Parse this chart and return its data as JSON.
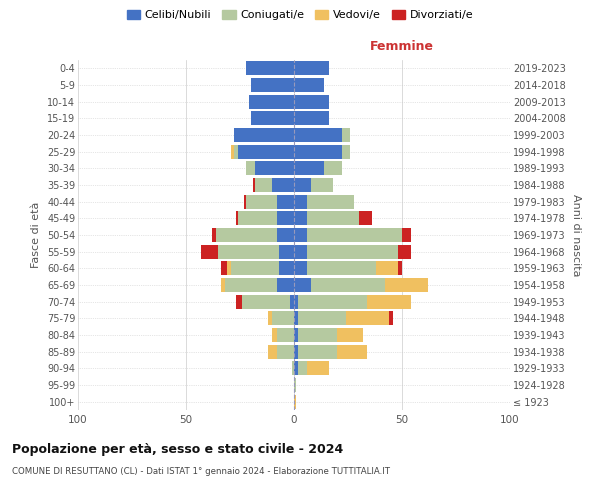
{
  "age_groups": [
    "100+",
    "95-99",
    "90-94",
    "85-89",
    "80-84",
    "75-79",
    "70-74",
    "65-69",
    "60-64",
    "55-59",
    "50-54",
    "45-49",
    "40-44",
    "35-39",
    "30-34",
    "25-29",
    "20-24",
    "15-19",
    "10-14",
    "5-9",
    "0-4"
  ],
  "birth_years": [
    "≤ 1923",
    "1924-1928",
    "1929-1933",
    "1934-1938",
    "1939-1943",
    "1944-1948",
    "1949-1953",
    "1954-1958",
    "1959-1963",
    "1964-1968",
    "1969-1973",
    "1974-1978",
    "1979-1983",
    "1984-1988",
    "1989-1993",
    "1994-1998",
    "1999-2003",
    "2004-2008",
    "2009-2013",
    "2014-2018",
    "2019-2023"
  ],
  "colors": {
    "celibe": "#4472c4",
    "coniugato": "#b5c9a0",
    "vedovo": "#f0c060",
    "divorziato": "#cc2222"
  },
  "males": {
    "celibe": [
      0,
      0,
      0,
      0,
      0,
      0,
      2,
      8,
      7,
      7,
      8,
      8,
      8,
      10,
      18,
      26,
      28,
      20,
      21,
      20,
      22
    ],
    "coniugato": [
      0,
      0,
      1,
      8,
      8,
      10,
      22,
      24,
      22,
      28,
      28,
      18,
      14,
      8,
      4,
      2,
      0,
      0,
      0,
      0,
      0
    ],
    "vedovo": [
      0,
      0,
      0,
      4,
      2,
      2,
      0,
      2,
      2,
      0,
      0,
      0,
      0,
      0,
      0,
      1,
      0,
      0,
      0,
      0,
      0
    ],
    "divorziato": [
      0,
      0,
      0,
      0,
      0,
      0,
      3,
      0,
      3,
      8,
      2,
      1,
      1,
      1,
      0,
      0,
      0,
      0,
      0,
      0,
      0
    ]
  },
  "females": {
    "celibe": [
      0,
      0,
      2,
      2,
      2,
      2,
      2,
      8,
      6,
      6,
      6,
      6,
      6,
      8,
      14,
      22,
      22,
      16,
      16,
      14,
      16
    ],
    "coniugato": [
      0,
      1,
      4,
      18,
      18,
      22,
      32,
      34,
      32,
      42,
      44,
      24,
      22,
      10,
      8,
      4,
      4,
      0,
      0,
      0,
      0
    ],
    "vedovo": [
      1,
      0,
      10,
      14,
      12,
      20,
      20,
      20,
      10,
      0,
      0,
      0,
      0,
      0,
      0,
      0,
      0,
      0,
      0,
      0,
      0
    ],
    "divorziato": [
      0,
      0,
      0,
      0,
      0,
      2,
      0,
      0,
      2,
      6,
      4,
      6,
      0,
      0,
      0,
      0,
      0,
      0,
      0,
      0,
      0
    ]
  },
  "xlim": 100,
  "title": "Popolazione per età, sesso e stato civile - 2024",
  "subtitle": "COMUNE DI RESUTTANO (CL) - Dati ISTAT 1° gennaio 2024 - Elaborazione TUTTITALIA.IT",
  "ylabel_left": "Fasce di età",
  "ylabel_right": "Anni di nascita",
  "xlabel_right": "Femmine",
  "legend_labels": [
    "Celibi/Nubili",
    "Coniugati/e",
    "Vedovi/e",
    "Divorziati/e"
  ],
  "background_color": "#ffffff",
  "grid_color": "#cccccc",
  "text_color": "#555555"
}
